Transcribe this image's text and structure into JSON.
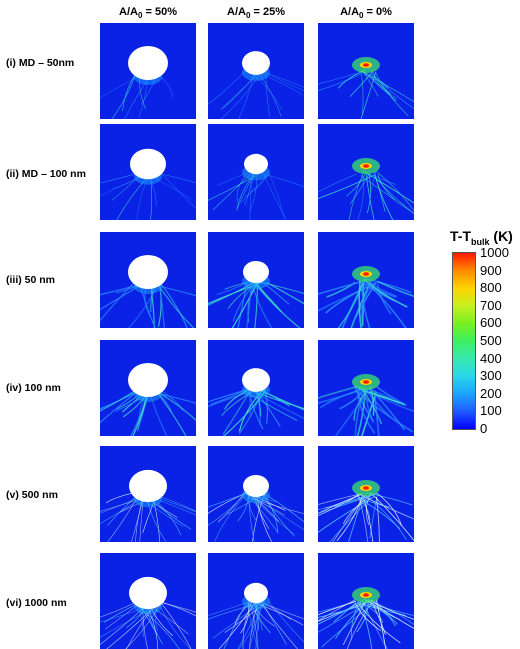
{
  "columns": [
    {
      "pre": "A/A",
      "sub": "0",
      "post": " = 50%"
    },
    {
      "pre": "A/A",
      "sub": "0",
      "post": " = 25%"
    },
    {
      "pre": "A/A",
      "sub": "0",
      "post": " = 0%"
    }
  ],
  "rows": [
    {
      "label": "(i) MD – 50nm"
    },
    {
      "label": "(ii) MD – 100 nm"
    },
    {
      "label": "(iii) 50 nm"
    },
    {
      "label": "(iv) 100 nm"
    },
    {
      "label": "(v) 500 nm"
    },
    {
      "label": "(vi) 1000 nm"
    }
  ],
  "colorbar": {
    "title_main": "T-T",
    "title_sub": "bulk",
    "title_unit": " (K)",
    "ticks": [
      "1000",
      "900",
      "800",
      "700",
      "600",
      "500",
      "400",
      "300",
      "200",
      "100",
      "0"
    ],
    "colors": {
      "low": "#0000ff",
      "mid": "#3df060",
      "high": "#ff1a00",
      "panel_bg": "#0a22e6"
    }
  }
}
